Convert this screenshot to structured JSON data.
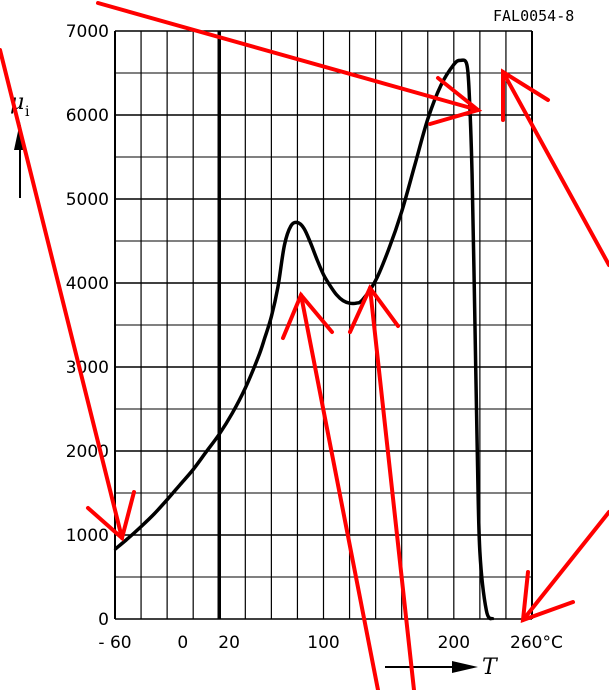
{
  "chart_data": {
    "type": "line",
    "figure_code": "FAL0054-8",
    "ylabel_symbol": "μ",
    "ylabel_sub": "i",
    "xlabel": "T",
    "xlim": [
      -60,
      260
    ],
    "ylim": [
      0,
      7000
    ],
    "grid": true,
    "x_ticks": [
      {
        "value": -60,
        "label": "- 60"
      },
      {
        "value": 0,
        "label": "0"
      },
      {
        "value": 20,
        "label": "20"
      },
      {
        "value": 100,
        "label": "100"
      },
      {
        "value": 200,
        "label": "200"
      },
      {
        "value": 260,
        "label": "260°C"
      }
    ],
    "y_ticks": [
      {
        "value": 0,
        "label": "0"
      },
      {
        "value": 1000,
        "label": "1000"
      },
      {
        "value": 2000,
        "label": "2000"
      },
      {
        "value": 3000,
        "label": "3000"
      },
      {
        "value": 4000,
        "label": "4000"
      },
      {
        "value": 5000,
        "label": "5000"
      },
      {
        "value": 6000,
        "label": "6000"
      },
      {
        "value": 7000,
        "label": "7000"
      }
    ],
    "reference_line_x": 20,
    "series": [
      {
        "x": [
          -60,
          -50,
          -40,
          -30,
          -20,
          -10,
          0,
          10,
          20,
          30,
          40,
          50,
          55,
          60,
          65,
          70,
          75,
          80,
          85,
          90,
          95,
          100,
          105,
          110,
          115,
          120,
          125,
          130,
          140,
          150,
          160,
          170,
          180,
          190,
          200,
          205,
          210,
          212,
          214,
          216,
          218,
          220,
          225,
          230
        ],
        "y": [
          830,
          960,
          1100,
          1250,
          1420,
          1600,
          1780,
          1990,
          2200,
          2450,
          2750,
          3120,
          3350,
          3600,
          3950,
          4450,
          4680,
          4720,
          4650,
          4480,
          4280,
          4100,
          3970,
          3860,
          3790,
          3760,
          3760,
          3800,
          4030,
          4400,
          4850,
          5400,
          5950,
          6350,
          6600,
          6650,
          6600,
          6200,
          5300,
          3700,
          2000,
          800,
          100,
          0
        ]
      }
    ]
  }
}
